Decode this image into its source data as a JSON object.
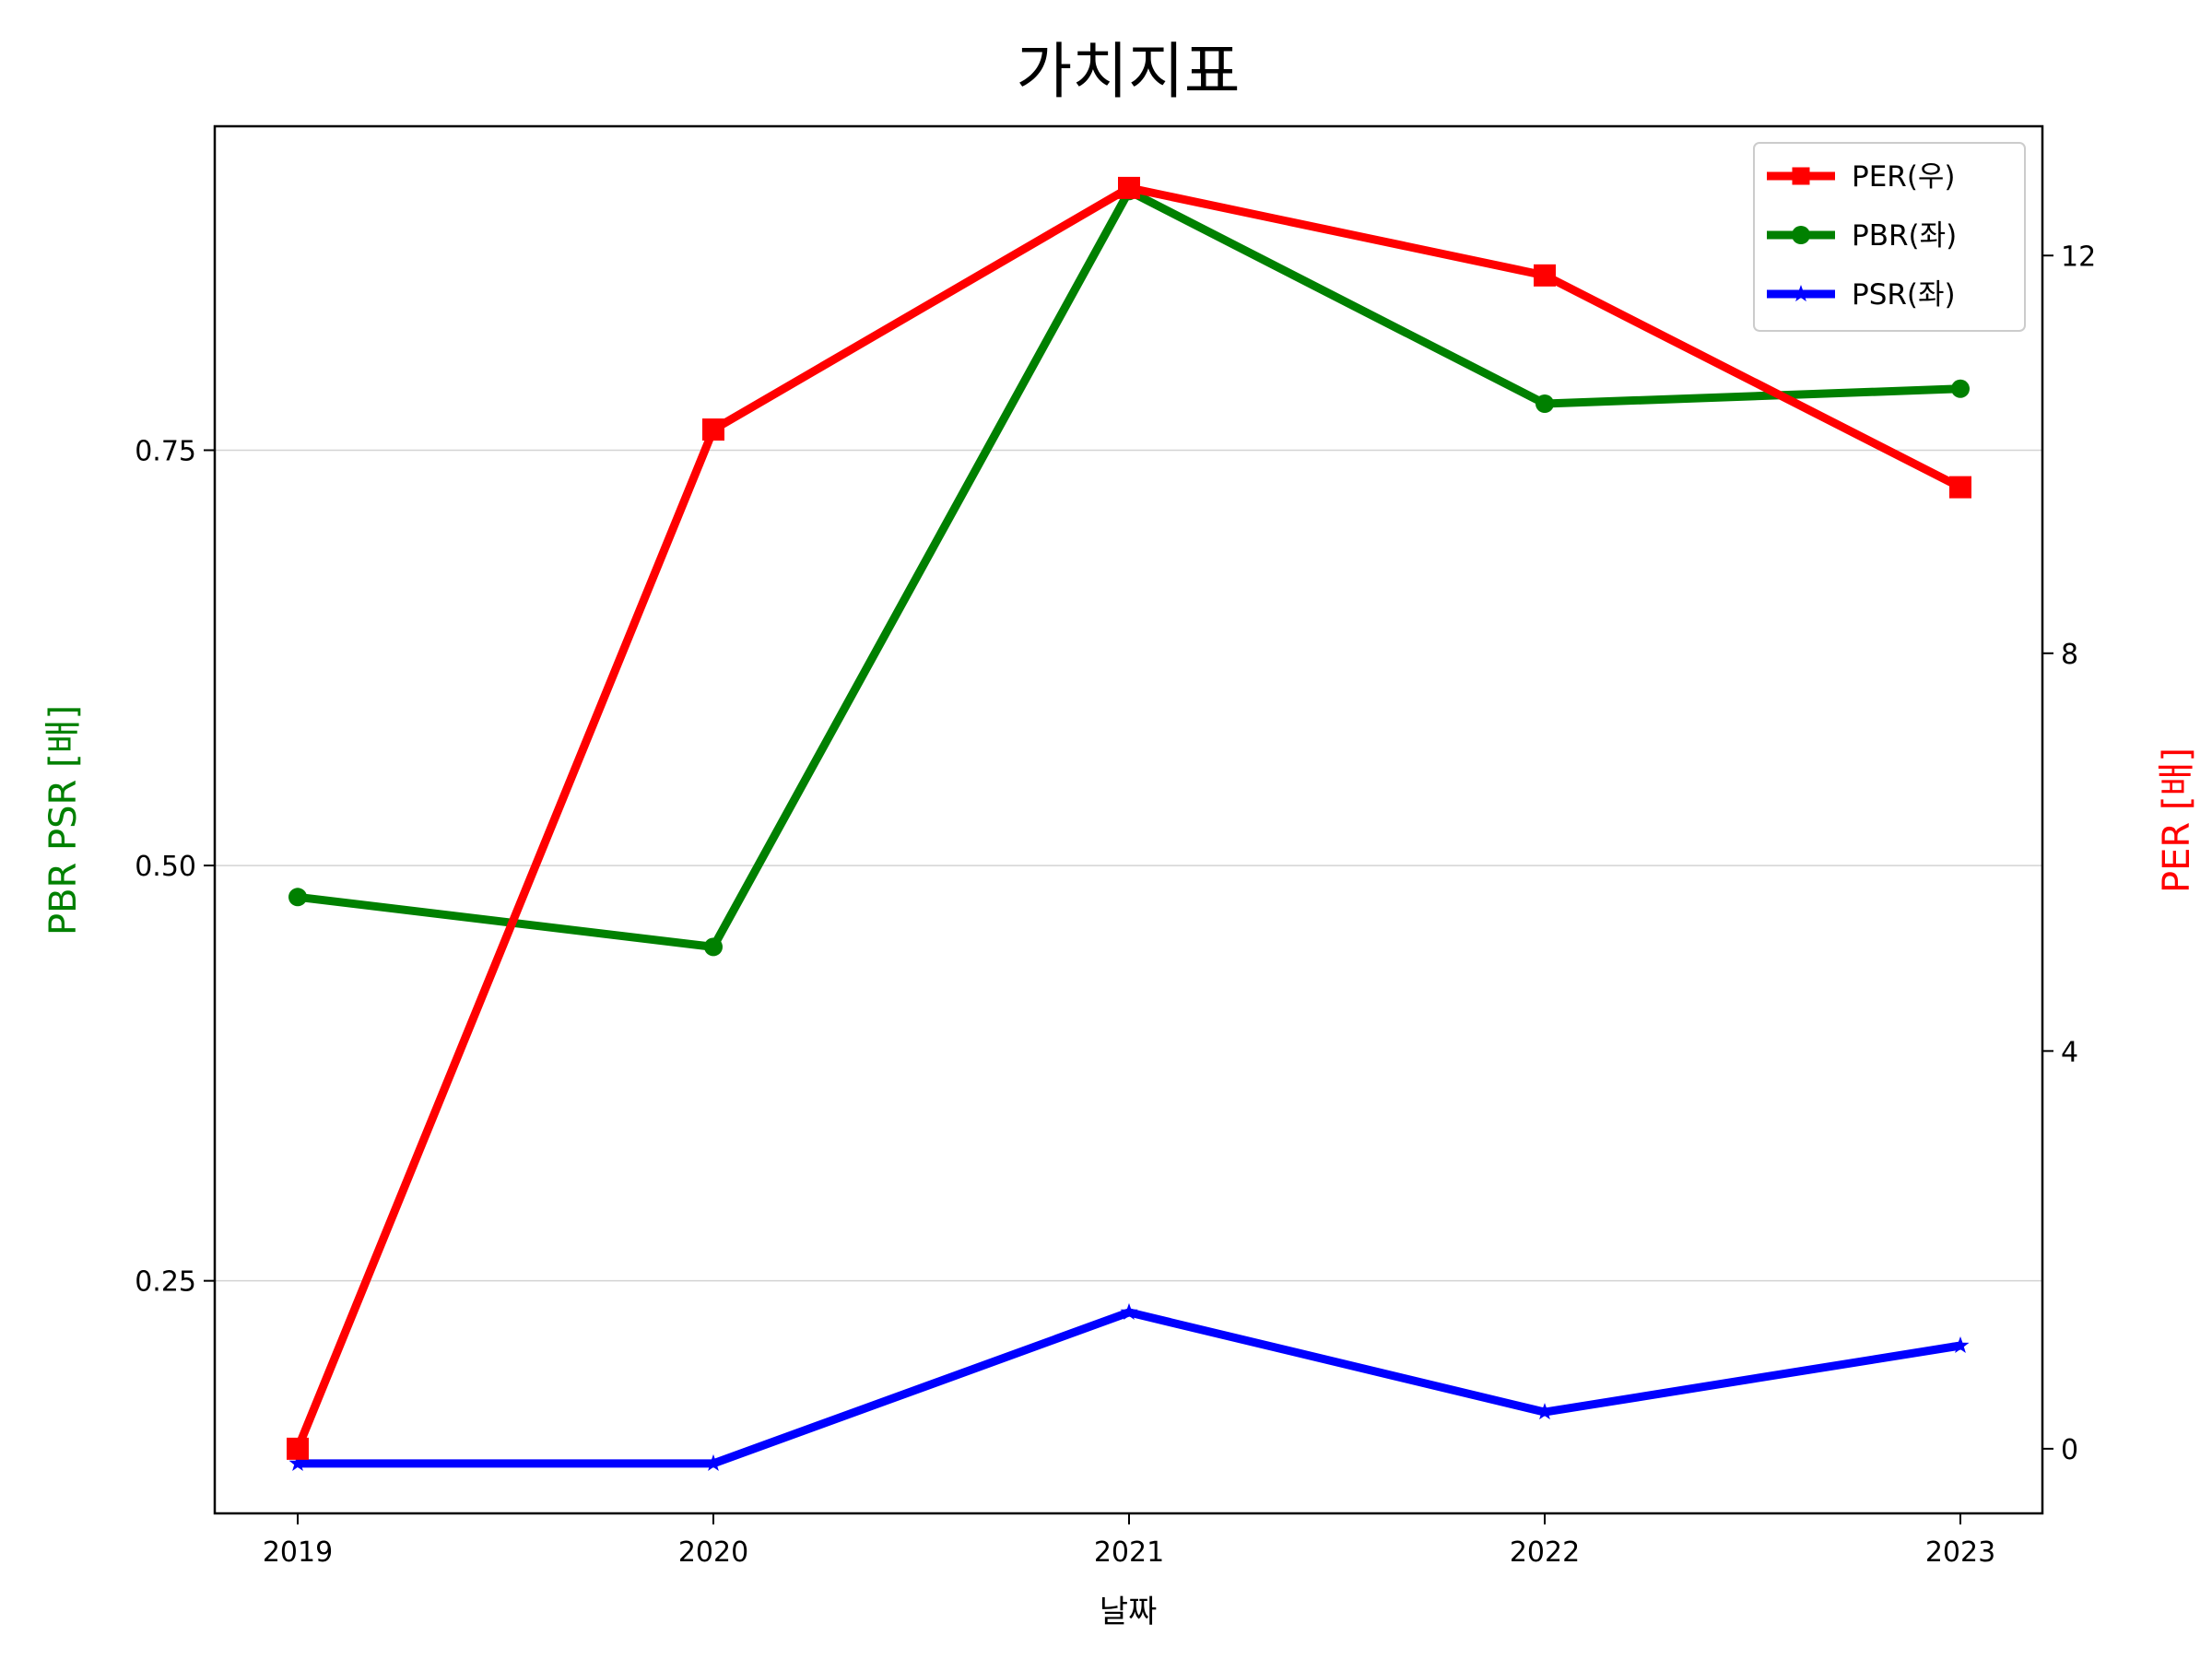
{
  "chart_data": {
    "type": "line",
    "title": "가치지표",
    "xlabel": "날짜",
    "ylabel_left": "PBR PSR [배]",
    "ylabel_right": "PER [배]",
    "categories": [
      "2019",
      "2020",
      "2021",
      "2022",
      "2023"
    ],
    "ylim_left": [
      0.11,
      0.945
    ],
    "yticks_left": [
      0.25,
      0.5,
      0.75
    ],
    "ytick_labels_left": [
      "0.25",
      "0.50",
      "0.75"
    ],
    "ylim_right": [
      -0.65,
      13.3
    ],
    "yticks_right": [
      0,
      4,
      8,
      12
    ],
    "ytick_labels_right": [
      "0",
      "4",
      "8",
      "12"
    ],
    "grid": "horizontal-left",
    "legend_position": "top-right",
    "series": [
      {
        "name": "PER(우)",
        "axis": "right",
        "marker": "square",
        "color": "#ff0000",
        "values": [
          0.0,
          10.25,
          12.68,
          11.8,
          9.67
        ]
      },
      {
        "name": "PBR(좌)",
        "axis": "left",
        "marker": "circle",
        "color": "#008000",
        "values": [
          0.481,
          0.451,
          0.906,
          0.778,
          0.787
        ]
      },
      {
        "name": "PSR(좌)",
        "axis": "left",
        "marker": "star",
        "color": "#0000ff",
        "values": [
          0.14,
          0.14,
          0.231,
          0.171,
          0.211
        ]
      }
    ]
  }
}
